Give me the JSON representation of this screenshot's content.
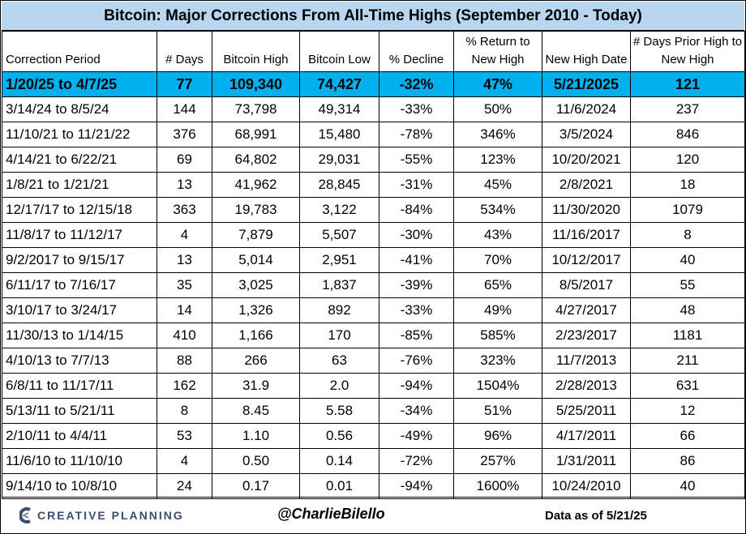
{
  "title": "Bitcoin: Major Corrections From All-Time Highs (September 2010 - Today)",
  "columns": [
    "Correction Period",
    "# Days",
    "Bitcoin High",
    "Bitcoin Low",
    "% Decline",
    "% Return to New High",
    "New High Date",
    "# Days Prior High to New High"
  ],
  "rows": [
    [
      "1/20/25 to 4/7/25",
      "77",
      "109,340",
      "74,427",
      "-32%",
      "47%",
      "5/21/2025",
      "121"
    ],
    [
      "3/14/24 to 8/5/24",
      "144",
      "73,798",
      "49,314",
      "-33%",
      "50%",
      "11/6/2024",
      "237"
    ],
    [
      "11/10/21 to 11/21/22",
      "376",
      "68,991",
      "15,480",
      "-78%",
      "346%",
      "3/5/2024",
      "846"
    ],
    [
      "4/14/21 to 6/22/21",
      "69",
      "64,802",
      "29,031",
      "-55%",
      "123%",
      "10/20/2021",
      "120"
    ],
    [
      "1/8/21 to 1/21/21",
      "13",
      "41,962",
      "28,845",
      "-31%",
      "45%",
      "2/8/2021",
      "18"
    ],
    [
      "12/17/17 to 12/15/18",
      "363",
      "19,783",
      "3,122",
      "-84%",
      "534%",
      "11/30/2020",
      "1079"
    ],
    [
      "11/8/17 to 11/12/17",
      "4",
      "7,879",
      "5,507",
      "-30%",
      "43%",
      "11/16/2017",
      "8"
    ],
    [
      "9/2/2017 to 9/15/17",
      "13",
      "5,014",
      "2,951",
      "-41%",
      "70%",
      "10/12/2017",
      "40"
    ],
    [
      "6/11/17 to 7/16/17",
      "35",
      "3,025",
      "1,837",
      "-39%",
      "65%",
      "8/5/2017",
      "55"
    ],
    [
      "3/10/17 to 3/24/17",
      "14",
      "1,326",
      "892",
      "-33%",
      "49%",
      "4/27/2017",
      "48"
    ],
    [
      "11/30/13 to 1/14/15",
      "410",
      "1,166",
      "170",
      "-85%",
      "585%",
      "2/23/2017",
      "1181"
    ],
    [
      "4/10/13 to 7/7/13",
      "88",
      "266",
      "63",
      "-76%",
      "323%",
      "11/7/2013",
      "211"
    ],
    [
      "6/8/11 to 11/17/11",
      "162",
      "31.9",
      "2.0",
      "-94%",
      "1504%",
      "2/28/2013",
      "631"
    ],
    [
      "5/13/11 to 5/21/11",
      "8",
      "8.45",
      "5.58",
      "-34%",
      "51%",
      "5/25/2011",
      "12"
    ],
    [
      "2/10/11 to 4/4/11",
      "53",
      "1.10",
      "0.56",
      "-49%",
      "96%",
      "4/17/2011",
      "66"
    ],
    [
      "11/6/10 to 11/10/10",
      "4",
      "0.50",
      "0.14",
      "-72%",
      "257%",
      "1/31/2011",
      "86"
    ],
    [
      "9/14/10 to 10/8/10",
      "24",
      "0.17",
      "0.01",
      "-94%",
      "1600%",
      "10/24/2010",
      "40"
    ]
  ],
  "highlight_row": 0,
  "colors": {
    "title_bg": "#b8d6ef",
    "highlight_bg": "#00b0f0",
    "logo": "#3c4e6c"
  },
  "footer": {
    "logo_text": "CREATIVE PLANNING",
    "logo_icon": "creative-planning-c-logo",
    "handle": "@CharlieBilello",
    "as_of": "Data as of 5/21/25"
  }
}
